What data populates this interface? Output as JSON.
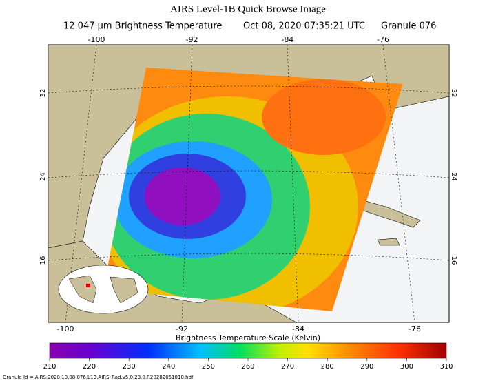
{
  "title": "AIRS Level-1B Quick Browse Image",
  "subtitle": {
    "channel": "12.047 μm Brightness Temperature",
    "time": "Oct 08, 2020 07:35:21 UTC",
    "granule": "Granule 076"
  },
  "map": {
    "lon_ticks": [
      -100,
      -92,
      -84,
      -76
    ],
    "lat_ticks": [
      32,
      24,
      16
    ]
  },
  "colorbar": {
    "label": "Brightness Temperature Scale (Kelvin)",
    "ticks": [
      210,
      220,
      230,
      240,
      250,
      260,
      270,
      280,
      290,
      300,
      310
    ]
  },
  "footer": "Granule Id = AIRS.2020.10.08.076.L1B.AIRS_Rad.v5.0.23.0.R20282051010.hdf"
}
